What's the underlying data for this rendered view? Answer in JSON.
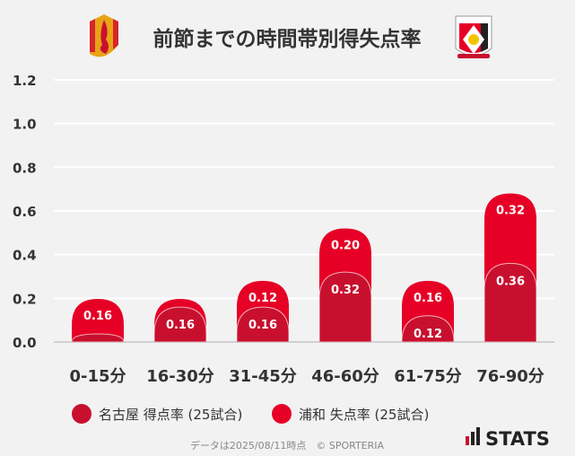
{
  "chart_data": {
    "type": "bar",
    "stacked": true,
    "title": "前節までの時間帯別得失点率",
    "categories": [
      "0-15分",
      "16-30分",
      "31-45分",
      "46-60分",
      "61-75分",
      "76-90分"
    ],
    "series": [
      {
        "name": "名古屋 得点率 (25試合)",
        "color": "#c8102e",
        "values": [
          0.0,
          0.16,
          0.16,
          0.32,
          0.12,
          0.36
        ]
      },
      {
        "name": "浦和 失点率 (25試合)",
        "color": "#e60026",
        "values": [
          0.16,
          0.0,
          0.12,
          0.2,
          0.16,
          0.32
        ]
      }
    ],
    "data_labels": [
      [
        "",
        "0.16",
        "0.16",
        "0.32",
        "0.12",
        "0.36"
      ],
      [
        "0.16",
        "",
        "0.12",
        "0.20",
        "0.16",
        "0.32"
      ]
    ],
    "yticks": [
      "0.0",
      "0.2",
      "0.4",
      "0.6",
      "0.8",
      "1.0",
      "1.2"
    ],
    "ylim": [
      0,
      1.2
    ],
    "grid": true,
    "legend": "bottom"
  },
  "footer": {
    "source": "データは2025/08/11時点　© SPORTERIA",
    "brand": "STATS"
  },
  "logos": {
    "left": "nagoya-grampus-crest",
    "right": "urawa-reds-crest"
  }
}
